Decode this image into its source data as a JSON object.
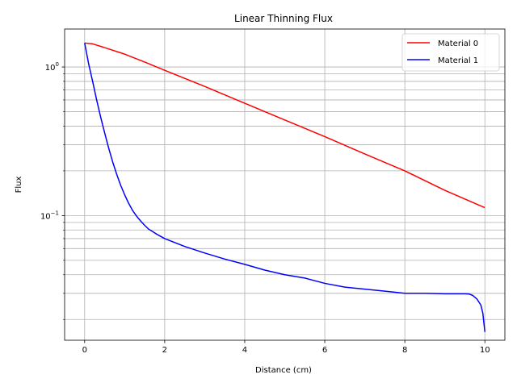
{
  "chart_data": {
    "type": "line",
    "title": "Linear Thinning Flux",
    "xlabel": "Distance (cm)",
    "ylabel": "Flux",
    "xlim": [
      -0.5,
      10.5
    ],
    "ylim": [
      0.0145,
      1.8
    ],
    "yscale": "log",
    "grid": true,
    "legend_position": "top-right",
    "x_ticks": [
      {
        "value": 0,
        "label": "0"
      },
      {
        "value": 2,
        "label": "2"
      },
      {
        "value": 4,
        "label": "4"
      },
      {
        "value": 6,
        "label": "6"
      },
      {
        "value": 8,
        "label": "8"
      },
      {
        "value": 10,
        "label": "10"
      }
    ],
    "y_major_ticks": [
      {
        "value": 0.1,
        "base": "10",
        "exp": "−1"
      },
      {
        "value": 1,
        "base": "10",
        "exp": "0"
      }
    ],
    "y_minor_ticks": [
      0.02,
      0.03,
      0.04,
      0.05,
      0.06,
      0.07,
      0.08,
      0.09,
      0.2,
      0.3,
      0.4,
      0.5,
      0.6,
      0.7,
      0.8,
      0.9
    ],
    "series": [
      {
        "name": "Material 0",
        "color": "#ff0000",
        "x": [
          0,
          0.2,
          0.5,
          1,
          1.5,
          2,
          3,
          4,
          5,
          6,
          7,
          8,
          9,
          10
        ],
        "y": [
          1.45,
          1.43,
          1.35,
          1.22,
          1.08,
          0.95,
          0.74,
          0.57,
          0.44,
          0.34,
          0.26,
          0.2,
          0.148,
          0.113
        ]
      },
      {
        "name": "Material 1",
        "color": "#0000ff",
        "x": [
          0,
          0.1,
          0.2,
          0.3,
          0.4,
          0.5,
          0.6,
          0.7,
          0.8,
          0.9,
          1.0,
          1.1,
          1.2,
          1.3,
          1.4,
          1.5,
          1.6,
          1.7,
          1.8,
          2.0,
          2.5,
          3.0,
          3.5,
          4.0,
          4.5,
          5.0,
          5.5,
          6.0,
          6.5,
          7.0,
          7.5,
          8.0,
          8.5,
          9.0,
          9.3,
          9.5,
          9.6,
          9.7,
          9.8,
          9.9,
          9.95,
          10.0
        ],
        "y": [
          1.45,
          1.05,
          0.8,
          0.6,
          0.46,
          0.36,
          0.285,
          0.23,
          0.19,
          0.16,
          0.138,
          0.121,
          0.108,
          0.099,
          0.092,
          0.086,
          0.081,
          0.078,
          0.075,
          0.07,
          0.062,
          0.056,
          0.051,
          0.047,
          0.043,
          0.04,
          0.038,
          0.035,
          0.033,
          0.032,
          0.031,
          0.03,
          0.03,
          0.0298,
          0.0298,
          0.0298,
          0.0297,
          0.029,
          0.0275,
          0.025,
          0.022,
          0.0165
        ]
      }
    ]
  }
}
